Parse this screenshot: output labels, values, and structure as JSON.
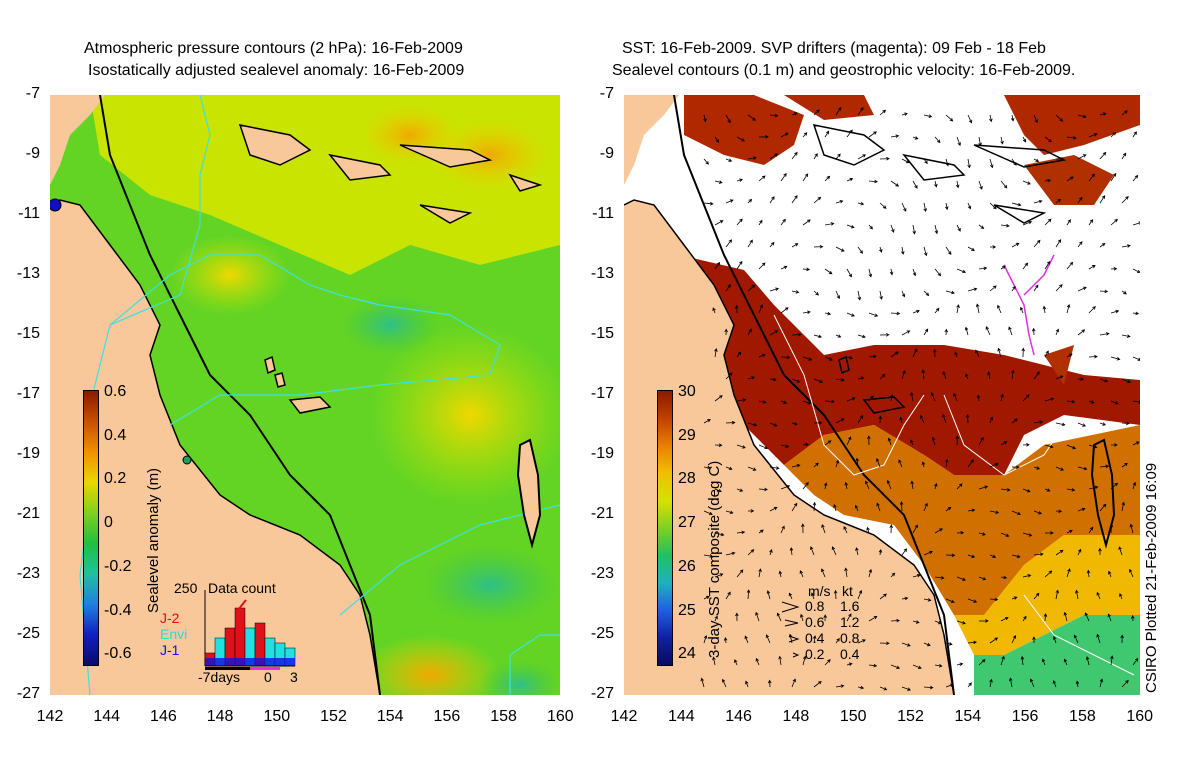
{
  "left": {
    "title_line1": "Atmospheric pressure contours (2 hPa): 16-Feb-2009",
    "title_line2": "Isostatically adjusted sealevel anomaly: 16-Feb-2009",
    "colorbar_label": "Sealevel anomaly (m)",
    "colorbar_ticks": [
      "0.6",
      "0.4",
      "0.2",
      "0",
      "-0.2",
      "-0.4",
      "-0.6"
    ],
    "inset": {
      "title": "Data count",
      "ymax_label": "250",
      "legend": [
        {
          "label": "J-2",
          "color": "#e0101a"
        },
        {
          "label": "Envi",
          "color": "#20e0e0"
        },
        {
          "label": "J-1",
          "color": "#1010e0"
        }
      ],
      "x_labels": [
        "-7days",
        "0",
        "3"
      ]
    }
  },
  "right": {
    "title_line1": "SST: 16-Feb-2009. SVP drifters (magenta): 09 Feb - 18 Feb",
    "title_line2": "Sealevel contours (0.1 m) and geostrophic velocity: 16-Feb-2009.",
    "colorbar_label": "3-day SST composite (deg C)",
    "colorbar_ticks": [
      "30",
      "29",
      "28",
      "27",
      "26",
      "25",
      "24"
    ],
    "velocity_legend": {
      "header_ms": "m/s",
      "header_kt": "kt",
      "rows": [
        {
          "ms": "0.8",
          "kt": "1.6"
        },
        {
          "ms": "0.6",
          "kt": "1.2"
        },
        {
          "ms": "0.4",
          "kt": "0.8"
        },
        {
          "ms": "0.2",
          "kt": "0.4"
        }
      ]
    }
  },
  "y_ticks": [
    "-7",
    "-9",
    "-11",
    "-13",
    "-15",
    "-17",
    "-19",
    "-21",
    "-23",
    "-25",
    "-27"
  ],
  "x_ticks": [
    "142",
    "144",
    "146",
    "148",
    "150",
    "152",
    "154",
    "156",
    "158",
    "160"
  ],
  "credit": "CSIRO Plotted 21-Feb-2009 16:09",
  "colors": {
    "land": "#f8c89a",
    "ocean_green": "#5ed020",
    "ocean_yellow": "#d8e800",
    "sst_red": "#a01800",
    "coast": "#000000",
    "contour_cyan": "#3ee0e0",
    "drifter": "#e030e0"
  }
}
